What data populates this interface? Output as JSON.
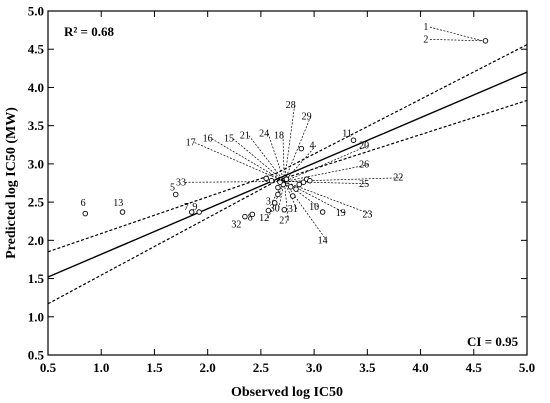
{
  "chart_data": {
    "type": "scatter",
    "title": "",
    "xlabel": "Observed log IC50",
    "ylabel": "Predicted log IC50 (MW)",
    "xlim": [
      0.5,
      5.0
    ],
    "ylim": [
      0.5,
      5.0
    ],
    "xticks": [
      "0.5",
      "1.0",
      "1.5",
      "2.0",
      "2.5",
      "3.0",
      "3.5",
      "4.0",
      "4.5",
      "5.0"
    ],
    "yticks": [
      "0.5",
      "1.0",
      "1.5",
      "2.0",
      "2.5",
      "3.0",
      "3.5",
      "4.0",
      "4.5",
      "5.0"
    ],
    "r2_label": "R² = 0.68",
    "ci_label": "CI = 0.95",
    "grid": false,
    "regression_line": {
      "x": [
        0.5,
        5.0
      ],
      "y": [
        1.52,
        4.2
      ]
    },
    "ci_upper": {
      "x": [
        0.5,
        2.65,
        5.0
      ],
      "y": [
        1.85,
        2.88,
        4.56
      ]
    },
    "ci_lower": {
      "x": [
        0.5,
        2.65,
        5.0
      ],
      "y": [
        1.17,
        2.78,
        3.83
      ]
    },
    "points": [
      {
        "x": 4.61,
        "y": 4.61
      },
      {
        "x": 3.37,
        "y": 3.31
      },
      {
        "x": 3.08,
        "y": 2.37
      },
      {
        "x": 2.63,
        "y": 2.49
      },
      {
        "x": 2.55,
        "y": 2.81
      },
      {
        "x": 2.6,
        "y": 2.78
      },
      {
        "x": 2.88,
        "y": 3.2
      },
      {
        "x": 0.85,
        "y": 2.35
      },
      {
        "x": 1.2,
        "y": 2.37
      },
      {
        "x": 1.7,
        "y": 2.6
      },
      {
        "x": 1.85,
        "y": 2.37
      },
      {
        "x": 1.92,
        "y": 2.37
      },
      {
        "x": 2.35,
        "y": 2.31
      },
      {
        "x": 2.42,
        "y": 2.34
      },
      {
        "x": 2.57,
        "y": 2.39
      },
      {
        "x": 2.72,
        "y": 2.4
      },
      {
        "x": 2.8,
        "y": 2.58
      },
      {
        "x": 2.66,
        "y": 2.69
      },
      {
        "x": 2.71,
        "y": 2.73
      },
      {
        "x": 2.78,
        "y": 2.7
      },
      {
        "x": 2.83,
        "y": 2.67
      },
      {
        "x": 2.86,
        "y": 2.73
      },
      {
        "x": 2.9,
        "y": 2.76
      },
      {
        "x": 2.93,
        "y": 2.8
      },
      {
        "x": 2.96,
        "y": 2.78
      },
      {
        "x": 2.66,
        "y": 2.6
      },
      {
        "x": 2.68,
        "y": 2.76
      },
      {
        "x": 2.74,
        "y": 2.8
      }
    ],
    "point_labels": [
      {
        "text": "1",
        "lx": 4.05,
        "ly": 4.75,
        "tx": 4.58,
        "ty": 4.61
      },
      {
        "text": "2",
        "lx": 4.05,
        "ly": 4.59,
        "tx": 4.58,
        "ty": 4.61
      },
      {
        "text": "11",
        "lx": 3.31,
        "ly": 3.36
      },
      {
        "text": "20",
        "lx": 3.47,
        "ly": 3.2,
        "tx": 2.72,
        "ty": 2.77
      },
      {
        "text": "26",
        "lx": 3.47,
        "ly": 2.95,
        "tx": 2.72,
        "ty": 2.77
      },
      {
        "text": "22",
        "lx": 3.79,
        "ly": 2.78,
        "tx": 2.72,
        "ty": 2.77
      },
      {
        "text": "25",
        "lx": 3.47,
        "ly": 2.7,
        "tx": 2.72,
        "ty": 2.77
      },
      {
        "text": "23",
        "lx": 3.5,
        "ly": 2.3,
        "tx": 2.72,
        "ty": 2.77
      },
      {
        "text": "19",
        "lx": 3.25,
        "ly": 2.32,
        "tx": 2.72,
        "ty": 2.77
      },
      {
        "text": "10",
        "lx": 3.0,
        "ly": 2.4,
        "tx": 2.72,
        "ty": 2.77
      },
      {
        "text": "14",
        "lx": 3.08,
        "ly": 1.96,
        "tx": 2.72,
        "ty": 2.77
      },
      {
        "text": "31",
        "lx": 2.8,
        "ly": 2.37,
        "tx": 2.72,
        "ty": 2.77
      },
      {
        "text": "27",
        "lx": 2.72,
        "ly": 2.22,
        "tx": 2.72,
        "ty": 2.77
      },
      {
        "text": "30",
        "lx": 2.63,
        "ly": 2.38,
        "tx": 2.72,
        "ty": 2.77
      },
      {
        "text": "12",
        "lx": 2.53,
        "ly": 2.25,
        "tx": 2.72,
        "ty": 2.77
      },
      {
        "text": "3",
        "lx": 2.57,
        "ly": 2.47,
        "tx": 2.72,
        "ty": 2.77
      },
      {
        "text": "8",
        "lx": 2.4,
        "ly": 2.26
      },
      {
        "text": "32",
        "lx": 2.27,
        "ly": 2.17
      },
      {
        "text": "7",
        "lx": 1.8,
        "ly": 2.4
      },
      {
        "text": "9",
        "lx": 1.88,
        "ly": 2.4
      },
      {
        "text": "6",
        "lx": 0.83,
        "ly": 2.45
      },
      {
        "text": "13",
        "lx": 1.16,
        "ly": 2.45
      },
      {
        "text": "5",
        "lx": 1.67,
        "ly": 2.65
      },
      {
        "text": "33",
        "lx": 1.75,
        "ly": 2.72,
        "tx": 2.72,
        "ty": 2.77
      },
      {
        "text": "17",
        "lx": 1.84,
        "ly": 3.24,
        "tx": 2.72,
        "ty": 2.77
      },
      {
        "text": "16",
        "lx": 2.0,
        "ly": 3.29,
        "tx": 2.72,
        "ty": 2.77
      },
      {
        "text": "15",
        "lx": 2.2,
        "ly": 3.29,
        "tx": 2.72,
        "ty": 2.77
      },
      {
        "text": "21",
        "lx": 2.35,
        "ly": 3.33,
        "tx": 2.72,
        "ty": 2.77
      },
      {
        "text": "24",
        "lx": 2.53,
        "ly": 3.36,
        "tx": 2.72,
        "ty": 2.77
      },
      {
        "text": "18",
        "lx": 2.67,
        "ly": 3.33,
        "tx": 2.72,
        "ty": 2.77
      },
      {
        "text": "28",
        "lx": 2.78,
        "ly": 3.73,
        "tx": 2.72,
        "ty": 2.77
      },
      {
        "text": "29",
        "lx": 2.93,
        "ly": 3.58,
        "tx": 2.72,
        "ty": 2.77
      },
      {
        "text": "4",
        "lx": 2.98,
        "ly": 3.2,
        "tx": 2.72,
        "ty": 2.77
      }
    ]
  }
}
